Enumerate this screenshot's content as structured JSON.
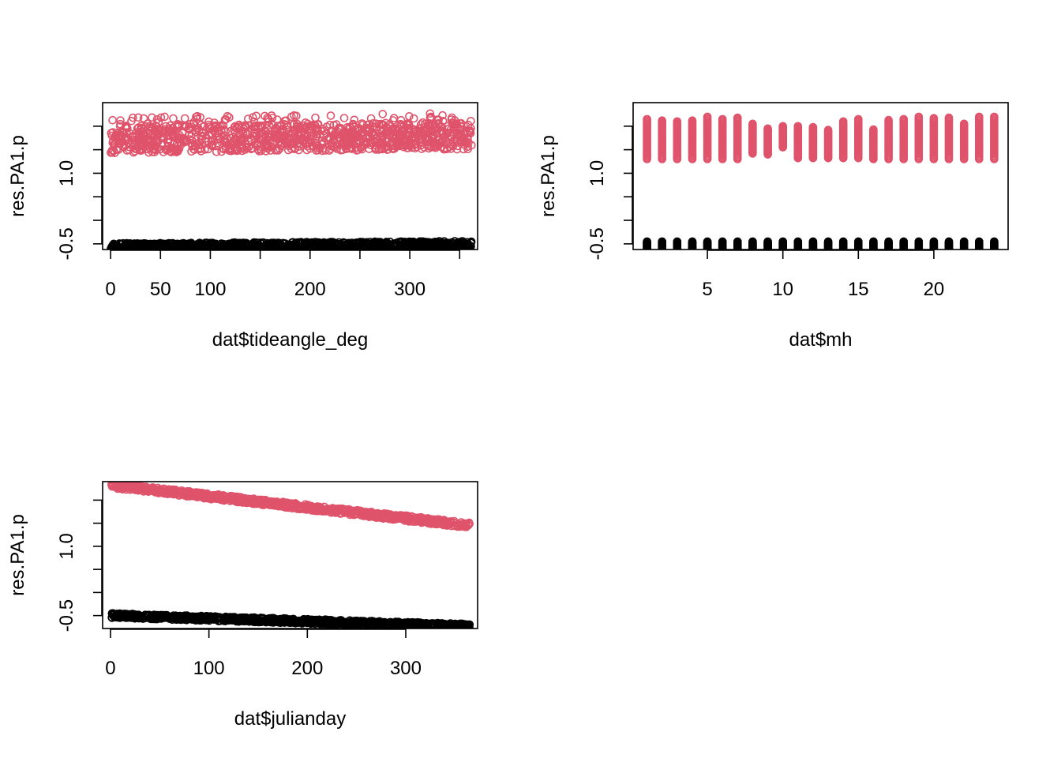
{
  "chart_data": [
    {
      "type": "scatter",
      "title": "",
      "xlabel": "dat$tideangle_deg",
      "ylabel": "res.PA1.p",
      "xlim": [
        -8,
        368
      ],
      "ylim": [
        -0.62,
        2.5
      ],
      "xticks": [
        0,
        50,
        100,
        150,
        200,
        250,
        300,
        350
      ],
      "xtick_labels": [
        "0",
        "50",
        "100",
        "",
        "200",
        "",
        "300",
        ""
      ],
      "yticks": [
        -0.5,
        0,
        0.5,
        1.0,
        1.5,
        2.0
      ],
      "ytick_labels": [
        "-0.5",
        "",
        "",
        "1.0",
        "",
        ""
      ],
      "grid": false,
      "series": [
        {
          "group": "upper",
          "color": "#DF536B",
          "x_range": [
            0,
            362
          ],
          "y_center_start": 1.72,
          "y_center_end": 1.8,
          "y_spread": 0.58
        },
        {
          "group": "lower",
          "color": "#000000",
          "x_range": [
            0,
            362
          ],
          "y_center_start": -0.6,
          "y_center_end": -0.55,
          "y_spread": 0.22
        }
      ]
    },
    {
      "type": "scatter",
      "title": "",
      "xlabel": "dat$mh",
      "ylabel": "res.PA1.p",
      "xlim": [
        0.08,
        24.92
      ],
      "ylim": [
        -0.62,
        2.5
      ],
      "xticks": [
        5,
        10,
        15,
        20
      ],
      "xtick_labels": [
        "5",
        "10",
        "15",
        "20"
      ],
      "yticks": [
        -0.5,
        0,
        0.5,
        1.0,
        1.5,
        2.0
      ],
      "ytick_labels": [
        "-0.5",
        "",
        "",
        "1.0",
        "",
        ""
      ],
      "grid": false,
      "series": [
        {
          "group": "upper",
          "color": "#DF536B",
          "x_values": [
            1,
            2,
            3,
            4,
            5,
            6,
            7,
            8,
            9,
            10,
            11,
            12,
            13,
            14,
            15,
            16,
            17,
            18,
            19,
            20,
            21,
            22,
            23,
            24
          ],
          "y_min": [
            1.3,
            1.3,
            1.3,
            1.3,
            1.3,
            1.3,
            1.3,
            1.42,
            1.4,
            1.55,
            1.32,
            1.32,
            1.32,
            1.32,
            1.32,
            1.3,
            1.3,
            1.3,
            1.3,
            1.3,
            1.3,
            1.3,
            1.3,
            1.3
          ],
          "y_max": [
            2.15,
            2.12,
            2.1,
            2.12,
            2.2,
            2.15,
            2.18,
            2.05,
            1.95,
            2.0,
            2.0,
            1.98,
            1.92,
            2.1,
            2.15,
            1.93,
            2.13,
            2.15,
            2.2,
            2.17,
            2.18,
            2.05,
            2.2,
            2.2
          ]
        },
        {
          "group": "lower",
          "color": "#000000",
          "x_values": [
            1,
            2,
            3,
            4,
            5,
            6,
            7,
            8,
            9,
            10,
            11,
            12,
            13,
            14,
            15,
            16,
            17,
            18,
            19,
            20,
            21,
            22,
            23,
            24
          ],
          "y_min": -0.72,
          "y_max": -0.45
        }
      ]
    },
    {
      "type": "scatter",
      "title": "",
      "xlabel": "dat$julianday",
      "ylabel": "res.PA1.p",
      "xlim": [
        -8,
        373
      ],
      "ylim": [
        -0.78,
        2.4
      ],
      "xticks": [
        0,
        100,
        200,
        300
      ],
      "xtick_labels": [
        "0",
        "100",
        "200",
        "300"
      ],
      "yticks": [
        -0.5,
        0,
        0.5,
        1.0,
        1.5,
        2.0
      ],
      "ytick_labels": [
        "-0.5",
        "",
        "",
        "1.0",
        "",
        ""
      ],
      "grid": false,
      "series": [
        {
          "group": "upper",
          "color": "#DF536B",
          "x_range": [
            1,
            365
          ],
          "y_start": 2.32,
          "y_end": 1.45,
          "y_spread": 0.12
        },
        {
          "group": "lower",
          "color": "#000000",
          "x_range": [
            1,
            365
          ],
          "y_start": -0.5,
          "y_end": -0.73,
          "y_spread": 0.1
        }
      ]
    }
  ]
}
